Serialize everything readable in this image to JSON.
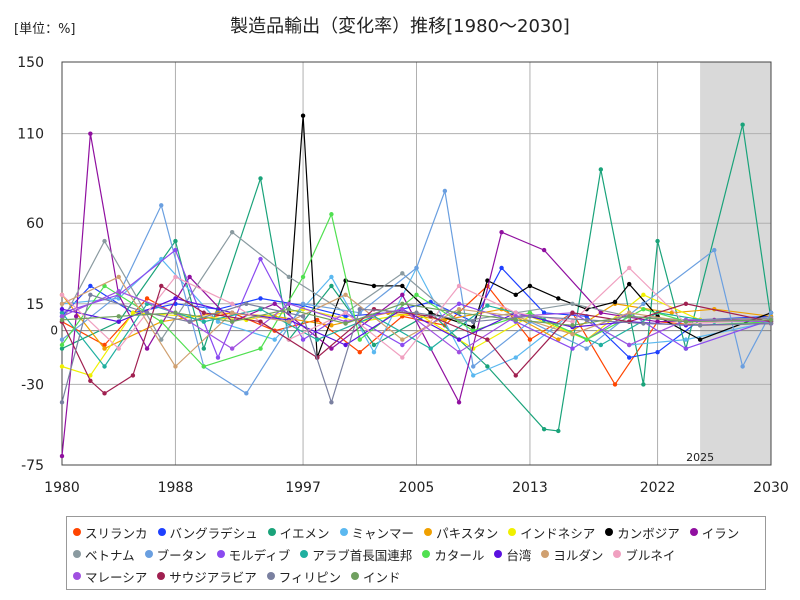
{
  "chart_data": {
    "type": "line",
    "title": "製造品輸出（変化率）推移[1980～2030]",
    "unit_label": "[単位：%]",
    "xlim": [
      1980,
      2030
    ],
    "ylim": [
      -75,
      150
    ],
    "x_ticks": [
      1980,
      1988,
      1997,
      2005,
      2013,
      2022,
      2030
    ],
    "y_ticks": [
      -75,
      -30,
      15,
      60,
      110,
      150
    ],
    "zero_label": "0",
    "forecast_start": 2025,
    "forecast_label": "2025",
    "grid": true,
    "legend_position": "bottom",
    "series": [
      {
        "name": "スリランカ",
        "color": "#ff4500",
        "values": [
          [
            1980,
            5
          ],
          [
            1983,
            -8
          ],
          [
            1986,
            18
          ],
          [
            1989,
            5
          ],
          [
            1992,
            10
          ],
          [
            1995,
            0
          ],
          [
            1998,
            6
          ],
          [
            2001,
            -12
          ],
          [
            2004,
            8
          ],
          [
            2007,
            3
          ],
          [
            2010,
            25
          ],
          [
            2013,
            -5
          ],
          [
            2016,
            10
          ],
          [
            2019,
            -30
          ],
          [
            2022,
            5
          ],
          [
            2025,
            3
          ],
          [
            2030,
            4
          ]
        ]
      },
      {
        "name": "バングラデシュ",
        "color": "#1e40ff",
        "values": [
          [
            1980,
            8
          ],
          [
            1982,
            25
          ],
          [
            1985,
            10
          ],
          [
            1988,
            15
          ],
          [
            1991,
            12
          ],
          [
            1994,
            18
          ],
          [
            1997,
            14
          ],
          [
            2000,
            8
          ],
          [
            2003,
            10
          ],
          [
            2006,
            16
          ],
          [
            2009,
            5
          ],
          [
            2011,
            35
          ],
          [
            2014,
            10
          ],
          [
            2017,
            8
          ],
          [
            2020,
            -15
          ],
          [
            2022,
            -12
          ],
          [
            2025,
            6
          ],
          [
            2030,
            8
          ]
        ]
      },
      {
        "name": "イエメン",
        "color": "#1aa37a",
        "values": [
          [
            1980,
            -10
          ],
          [
            1984,
            5
          ],
          [
            1988,
            50
          ],
          [
            1990,
            -10
          ],
          [
            1994,
            85
          ],
          [
            1996,
            -5
          ],
          [
            1999,
            25
          ],
          [
            2002,
            -8
          ],
          [
            2006,
            10
          ],
          [
            2010,
            -20
          ],
          [
            2014,
            -55
          ],
          [
            2015,
            -56
          ],
          [
            2018,
            90
          ],
          [
            2021,
            -30
          ],
          [
            2022,
            50
          ],
          [
            2024,
            -10
          ],
          [
            2028,
            115
          ],
          [
            2030,
            6
          ]
        ]
      },
      {
        "name": "ミャンマー",
        "color": "#5bb8f0",
        "values": [
          [
            1980,
            15
          ],
          [
            1984,
            18
          ],
          [
            1987,
            40
          ],
          [
            1991,
            5
          ],
          [
            1995,
            -5
          ],
          [
            1999,
            30
          ],
          [
            2002,
            -12
          ],
          [
            2005,
            35
          ],
          [
            2009,
            -25
          ],
          [
            2012,
            -15
          ],
          [
            2016,
            10
          ],
          [
            2020,
            -8
          ],
          [
            2024,
            -5
          ],
          [
            2030,
            5
          ]
        ]
      },
      {
        "name": "パキスタン",
        "color": "#f0a000",
        "values": [
          [
            1980,
            20
          ],
          [
            1983,
            -10
          ],
          [
            1987,
            5
          ],
          [
            1991,
            10
          ],
          [
            1995,
            8
          ],
          [
            1999,
            3
          ],
          [
            2003,
            10
          ],
          [
            2007,
            6
          ],
          [
            2011,
            12
          ],
          [
            2015,
            -5
          ],
          [
            2019,
            15
          ],
          [
            2023,
            10
          ],
          [
            2026,
            12
          ],
          [
            2030,
            8
          ]
        ]
      },
      {
        "name": "インドネシア",
        "color": "#f0f000",
        "values": [
          [
            1980,
            -20
          ],
          [
            1982,
            -25
          ],
          [
            1985,
            10
          ],
          [
            1989,
            8
          ],
          [
            1993,
            6
          ],
          [
            1997,
            12
          ],
          [
            2001,
            5
          ],
          [
            2005,
            10
          ],
          [
            2009,
            -10
          ],
          [
            2013,
            8
          ],
          [
            2017,
            -5
          ],
          [
            2021,
            20
          ],
          [
            2025,
            6
          ],
          [
            2030,
            7
          ]
        ]
      },
      {
        "name": "カンボジア",
        "color": "#000000",
        "values": [
          [
            1996,
            10
          ],
          [
            1997,
            120
          ],
          [
            1998,
            -15
          ],
          [
            2000,
            28
          ],
          [
            2002,
            25
          ],
          [
            2004,
            25
          ],
          [
            2006,
            10
          ],
          [
            2009,
            2
          ],
          [
            2010,
            28
          ],
          [
            2012,
            20
          ],
          [
            2013,
            25
          ],
          [
            2015,
            18
          ],
          [
            2017,
            12
          ],
          [
            2019,
            16
          ],
          [
            2020,
            26
          ],
          [
            2022,
            8
          ],
          [
            2025,
            -5
          ],
          [
            2030,
            10
          ]
        ]
      },
      {
        "name": "イラン",
        "color": "#9010a0",
        "values": [
          [
            1980,
            -70
          ],
          [
            1981,
            8
          ],
          [
            1982,
            110
          ],
          [
            1984,
            20
          ],
          [
            1986,
            -10
          ],
          [
            1989,
            30
          ],
          [
            1992,
            5
          ],
          [
            1995,
            15
          ],
          [
            1999,
            -10
          ],
          [
            2004,
            20
          ],
          [
            2008,
            -40
          ],
          [
            2011,
            55
          ],
          [
            2014,
            45
          ],
          [
            2018,
            10
          ],
          [
            2022,
            5
          ],
          [
            2026,
            6
          ],
          [
            2030,
            7
          ]
        ]
      },
      {
        "name": "ベトナム",
        "color": "#8a9aa0",
        "values": [
          [
            1980,
            5
          ],
          [
            1983,
            50
          ],
          [
            1987,
            -5
          ],
          [
            1992,
            55
          ],
          [
            1996,
            30
          ],
          [
            2000,
            10
          ],
          [
            2004,
            32
          ],
          [
            2008,
            5
          ],
          [
            2012,
            10
          ],
          [
            2016,
            15
          ],
          [
            2020,
            8
          ],
          [
            2024,
            6
          ],
          [
            2030,
            7
          ]
        ]
      },
      {
        "name": "ブータン",
        "color": "#6a9fe0",
        "values": [
          [
            1980,
            -5
          ],
          [
            1984,
            20
          ],
          [
            1987,
            70
          ],
          [
            1990,
            -20
          ],
          [
            1993,
            -35
          ],
          [
            1997,
            15
          ],
          [
            2001,
            10
          ],
          [
            2005,
            35
          ],
          [
            2007,
            78
          ],
          [
            2009,
            -20
          ],
          [
            2013,
            5
          ],
          [
            2017,
            -10
          ],
          [
            2021,
            15
          ],
          [
            2026,
            45
          ],
          [
            2028,
            -20
          ],
          [
            2030,
            10
          ]
        ]
      },
      {
        "name": "モルディブ",
        "color": "#8a4af0",
        "values": [
          [
            1980,
            10
          ],
          [
            1984,
            20
          ],
          [
            1988,
            45
          ],
          [
            1991,
            -15
          ],
          [
            1994,
            40
          ],
          [
            1997,
            -5
          ],
          [
            2000,
            10
          ],
          [
            2004,
            -8
          ],
          [
            2008,
            15
          ],
          [
            2012,
            5
          ],
          [
            2016,
            -10
          ],
          [
            2020,
            10
          ],
          [
            2024,
            -10
          ],
          [
            2030,
            6
          ]
        ]
      },
      {
        "name": "アラブ首長国連邦",
        "color": "#20b0a0",
        "values": [
          [
            1980,
            10
          ],
          [
            1983,
            -20
          ],
          [
            1986,
            15
          ],
          [
            1990,
            5
          ],
          [
            1994,
            12
          ],
          [
            1998,
            -5
          ],
          [
            2002,
            8
          ],
          [
            2006,
            -10
          ],
          [
            2010,
            14
          ],
          [
            2014,
            6
          ],
          [
            2018,
            -8
          ],
          [
            2022,
            10
          ],
          [
            2026,
            5
          ],
          [
            2030,
            6
          ]
        ]
      },
      {
        "name": "カタール",
        "color": "#50e050",
        "values": [
          [
            1980,
            -8
          ],
          [
            1983,
            25
          ],
          [
            1987,
            5
          ],
          [
            1990,
            -20
          ],
          [
            1994,
            -10
          ],
          [
            1997,
            30
          ],
          [
            1999,
            65
          ],
          [
            2001,
            -5
          ],
          [
            2005,
            20
          ],
          [
            2009,
            0
          ],
          [
            2013,
            10
          ],
          [
            2017,
            -5
          ],
          [
            2021,
            12
          ],
          [
            2025,
            3
          ],
          [
            2030,
            5
          ]
        ]
      },
      {
        "name": "台湾",
        "color": "#5a10e0",
        "values": [
          [
            1980,
            12
          ],
          [
            1984,
            5
          ],
          [
            1988,
            18
          ],
          [
            1992,
            10
          ],
          [
            1996,
            6
          ],
          [
            2000,
            -8
          ],
          [
            2004,
            12
          ],
          [
            2008,
            -5
          ],
          [
            2012,
            10
          ],
          [
            2016,
            2
          ],
          [
            2020,
            5
          ],
          [
            2024,
            3
          ],
          [
            2030,
            4
          ]
        ]
      },
      {
        "name": "ヨルダン",
        "color": "#d0a070",
        "values": [
          [
            1980,
            15
          ],
          [
            1984,
            30
          ],
          [
            1988,
            -20
          ],
          [
            1992,
            10
          ],
          [
            1996,
            5
          ],
          [
            2000,
            20
          ],
          [
            2004,
            -5
          ],
          [
            2008,
            12
          ],
          [
            2012,
            8
          ],
          [
            2016,
            -2
          ],
          [
            2020,
            10
          ],
          [
            2024,
            5
          ],
          [
            2030,
            6
          ]
        ]
      },
      {
        "name": "ブルネイ",
        "color": "#f0a0c0",
        "values": [
          [
            1980,
            20
          ],
          [
            1984,
            -10
          ],
          [
            1988,
            30
          ],
          [
            1992,
            15
          ],
          [
            1996,
            -5
          ],
          [
            2000,
            10
          ],
          [
            2004,
            -15
          ],
          [
            2008,
            25
          ],
          [
            2012,
            10
          ],
          [
            2016,
            5
          ],
          [
            2020,
            35
          ],
          [
            2024,
            4
          ],
          [
            2030,
            6
          ]
        ]
      },
      {
        "name": "マレーシア",
        "color": "#a050e0",
        "values": [
          [
            1980,
            8
          ],
          [
            1984,
            22
          ],
          [
            1988,
            10
          ],
          [
            1992,
            -10
          ],
          [
            1996,
            15
          ],
          [
            2000,
            5
          ],
          [
            2004,
            12
          ],
          [
            2008,
            -12
          ],
          [
            2012,
            8
          ],
          [
            2016,
            10
          ],
          [
            2020,
            -8
          ],
          [
            2024,
            6
          ],
          [
            2030,
            5
          ]
        ]
      },
      {
        "name": "サウジアラビア",
        "color": "#a02050",
        "values": [
          [
            1980,
            5
          ],
          [
            1982,
            -28
          ],
          [
            1983,
            -35
          ],
          [
            1985,
            -25
          ],
          [
            1987,
            25
          ],
          [
            1990,
            10
          ],
          [
            1994,
            5
          ],
          [
            1998,
            -15
          ],
          [
            2002,
            12
          ],
          [
            2006,
            8
          ],
          [
            2010,
            -5
          ],
          [
            2012,
            -25
          ],
          [
            2016,
            10
          ],
          [
            2020,
            5
          ],
          [
            2024,
            15
          ],
          [
            2030,
            5
          ]
        ]
      },
      {
        "name": "フィリピン",
        "color": "#7a80a0",
        "values": [
          [
            1980,
            -40
          ],
          [
            1982,
            20
          ],
          [
            1986,
            10
          ],
          [
            1989,
            5
          ],
          [
            1993,
            15
          ],
          [
            1997,
            8
          ],
          [
            1999,
            -40
          ],
          [
            2001,
            12
          ],
          [
            2005,
            10
          ],
          [
            2009,
            5
          ],
          [
            2013,
            8
          ],
          [
            2017,
            6
          ],
          [
            2021,
            4
          ],
          [
            2025,
            3
          ],
          [
            2030,
            4
          ]
        ]
      },
      {
        "name": "インド",
        "color": "#70a060",
        "values": [
          [
            1980,
            6
          ],
          [
            1984,
            8
          ],
          [
            1988,
            10
          ],
          [
            1992,
            5
          ],
          [
            1996,
            12
          ],
          [
            2000,
            4
          ],
          [
            2004,
            15
          ],
          [
            2008,
            10
          ],
          [
            2012,
            6
          ],
          [
            2016,
            3
          ],
          [
            2020,
            8
          ],
          [
            2024,
            5
          ],
          [
            2030,
            6
          ]
        ]
      }
    ]
  }
}
